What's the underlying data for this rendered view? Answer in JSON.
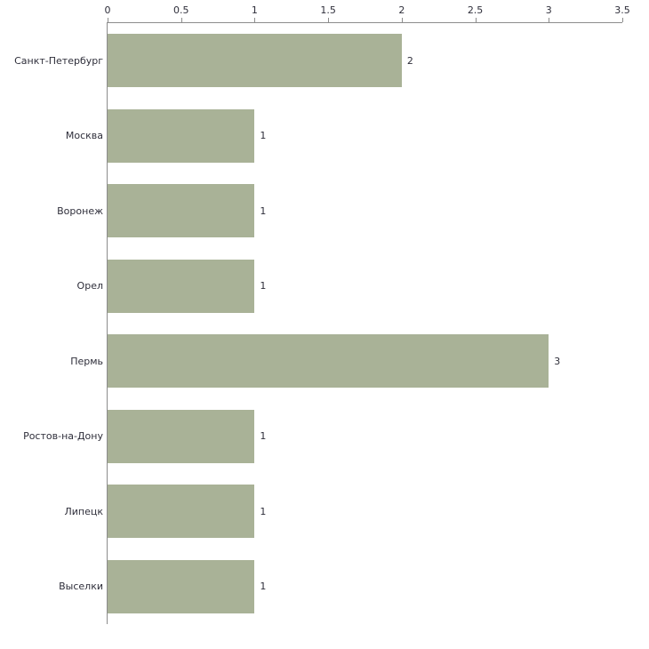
{
  "chart_data": {
    "type": "bar",
    "orientation": "horizontal",
    "title": "",
    "xlabel": "",
    "ylabel": "",
    "categories": [
      "Санкт-Петербург",
      "Москва",
      "Воронеж",
      "Орел",
      "Пермь",
      "Ростов-на-Дону",
      "Липецк",
      "Выселки"
    ],
    "values": [
      2,
      1,
      1,
      1,
      3,
      1,
      1,
      1
    ],
    "value_labels": [
      "2",
      "1",
      "1",
      "1",
      "3",
      "1",
      "1",
      "1"
    ],
    "xlim": [
      0,
      3.5
    ],
    "x_ticks": [
      0,
      0.5,
      1,
      1.5,
      2,
      2.5,
      3,
      3.5
    ],
    "x_tick_labels": [
      "0",
      "0.5",
      "1",
      "1.5",
      "2",
      "2.5",
      "3",
      "3.5"
    ],
    "axis_position": "top",
    "grid": false,
    "legend": null,
    "bar_color": "#a9b297",
    "axis_line_color": "#8c8c8c",
    "text_color": "#2e2e3a",
    "background_color": "#ffffff"
  }
}
